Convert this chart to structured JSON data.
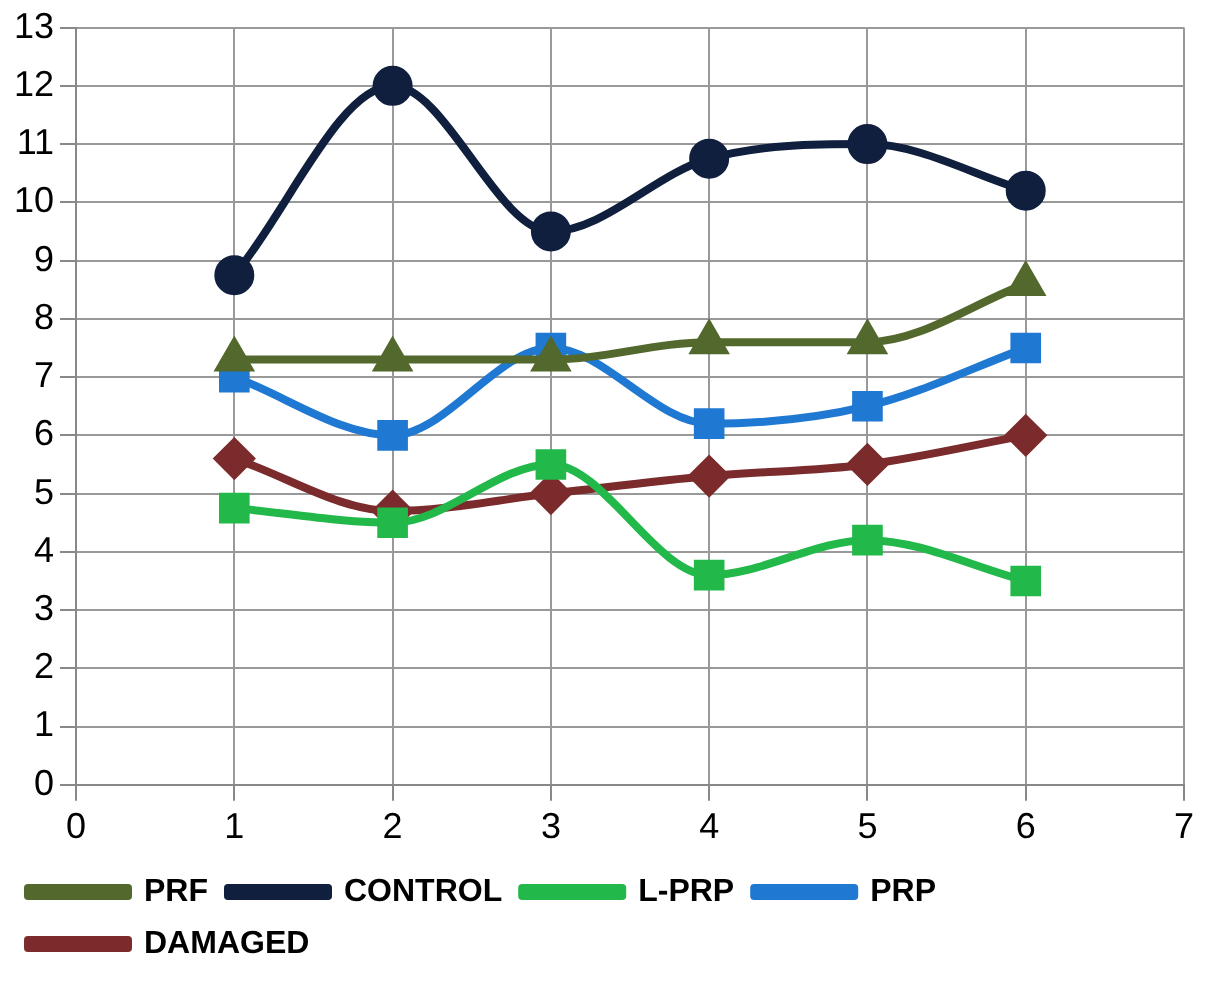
{
  "chart_data": {
    "type": "line",
    "x": [
      1,
      2,
      3,
      4,
      5,
      6
    ],
    "xlim": [
      0,
      7
    ],
    "xticks": [
      0,
      1,
      2,
      3,
      4,
      5,
      6,
      7
    ],
    "ylim": [
      0,
      13
    ],
    "yticks": [
      0,
      1,
      2,
      3,
      4,
      5,
      6,
      7,
      8,
      9,
      10,
      11,
      12,
      13
    ],
    "grid": true,
    "legend": "bottom",
    "line_style": "solid",
    "series": [
      {
        "name": "DAMAGED",
        "color": "#7b2b2b",
        "marker": "diamond",
        "values": [
          5.6,
          4.7,
          5.0,
          5.3,
          5.5,
          6.0
        ]
      },
      {
        "name": "PRP",
        "color": "#1f78d1",
        "marker": "square",
        "values": [
          7.0,
          6.0,
          7.5,
          6.2,
          6.5,
          7.5
        ]
      },
      {
        "name": "L-PRP",
        "color": "#22b84a",
        "marker": "square",
        "values": [
          4.75,
          4.5,
          5.5,
          3.6,
          4.2,
          3.5
        ]
      },
      {
        "name": "CONTROL",
        "color": "#0f1f3d",
        "marker": "circle",
        "values": [
          8.75,
          12.0,
          9.5,
          10.75,
          11.0,
          10.2
        ]
      },
      {
        "name": "PRF",
        "color": "#52682c",
        "marker": "triangle",
        "values": [
          7.3,
          7.3,
          7.3,
          7.6,
          7.6,
          8.6
        ]
      }
    ]
  }
}
